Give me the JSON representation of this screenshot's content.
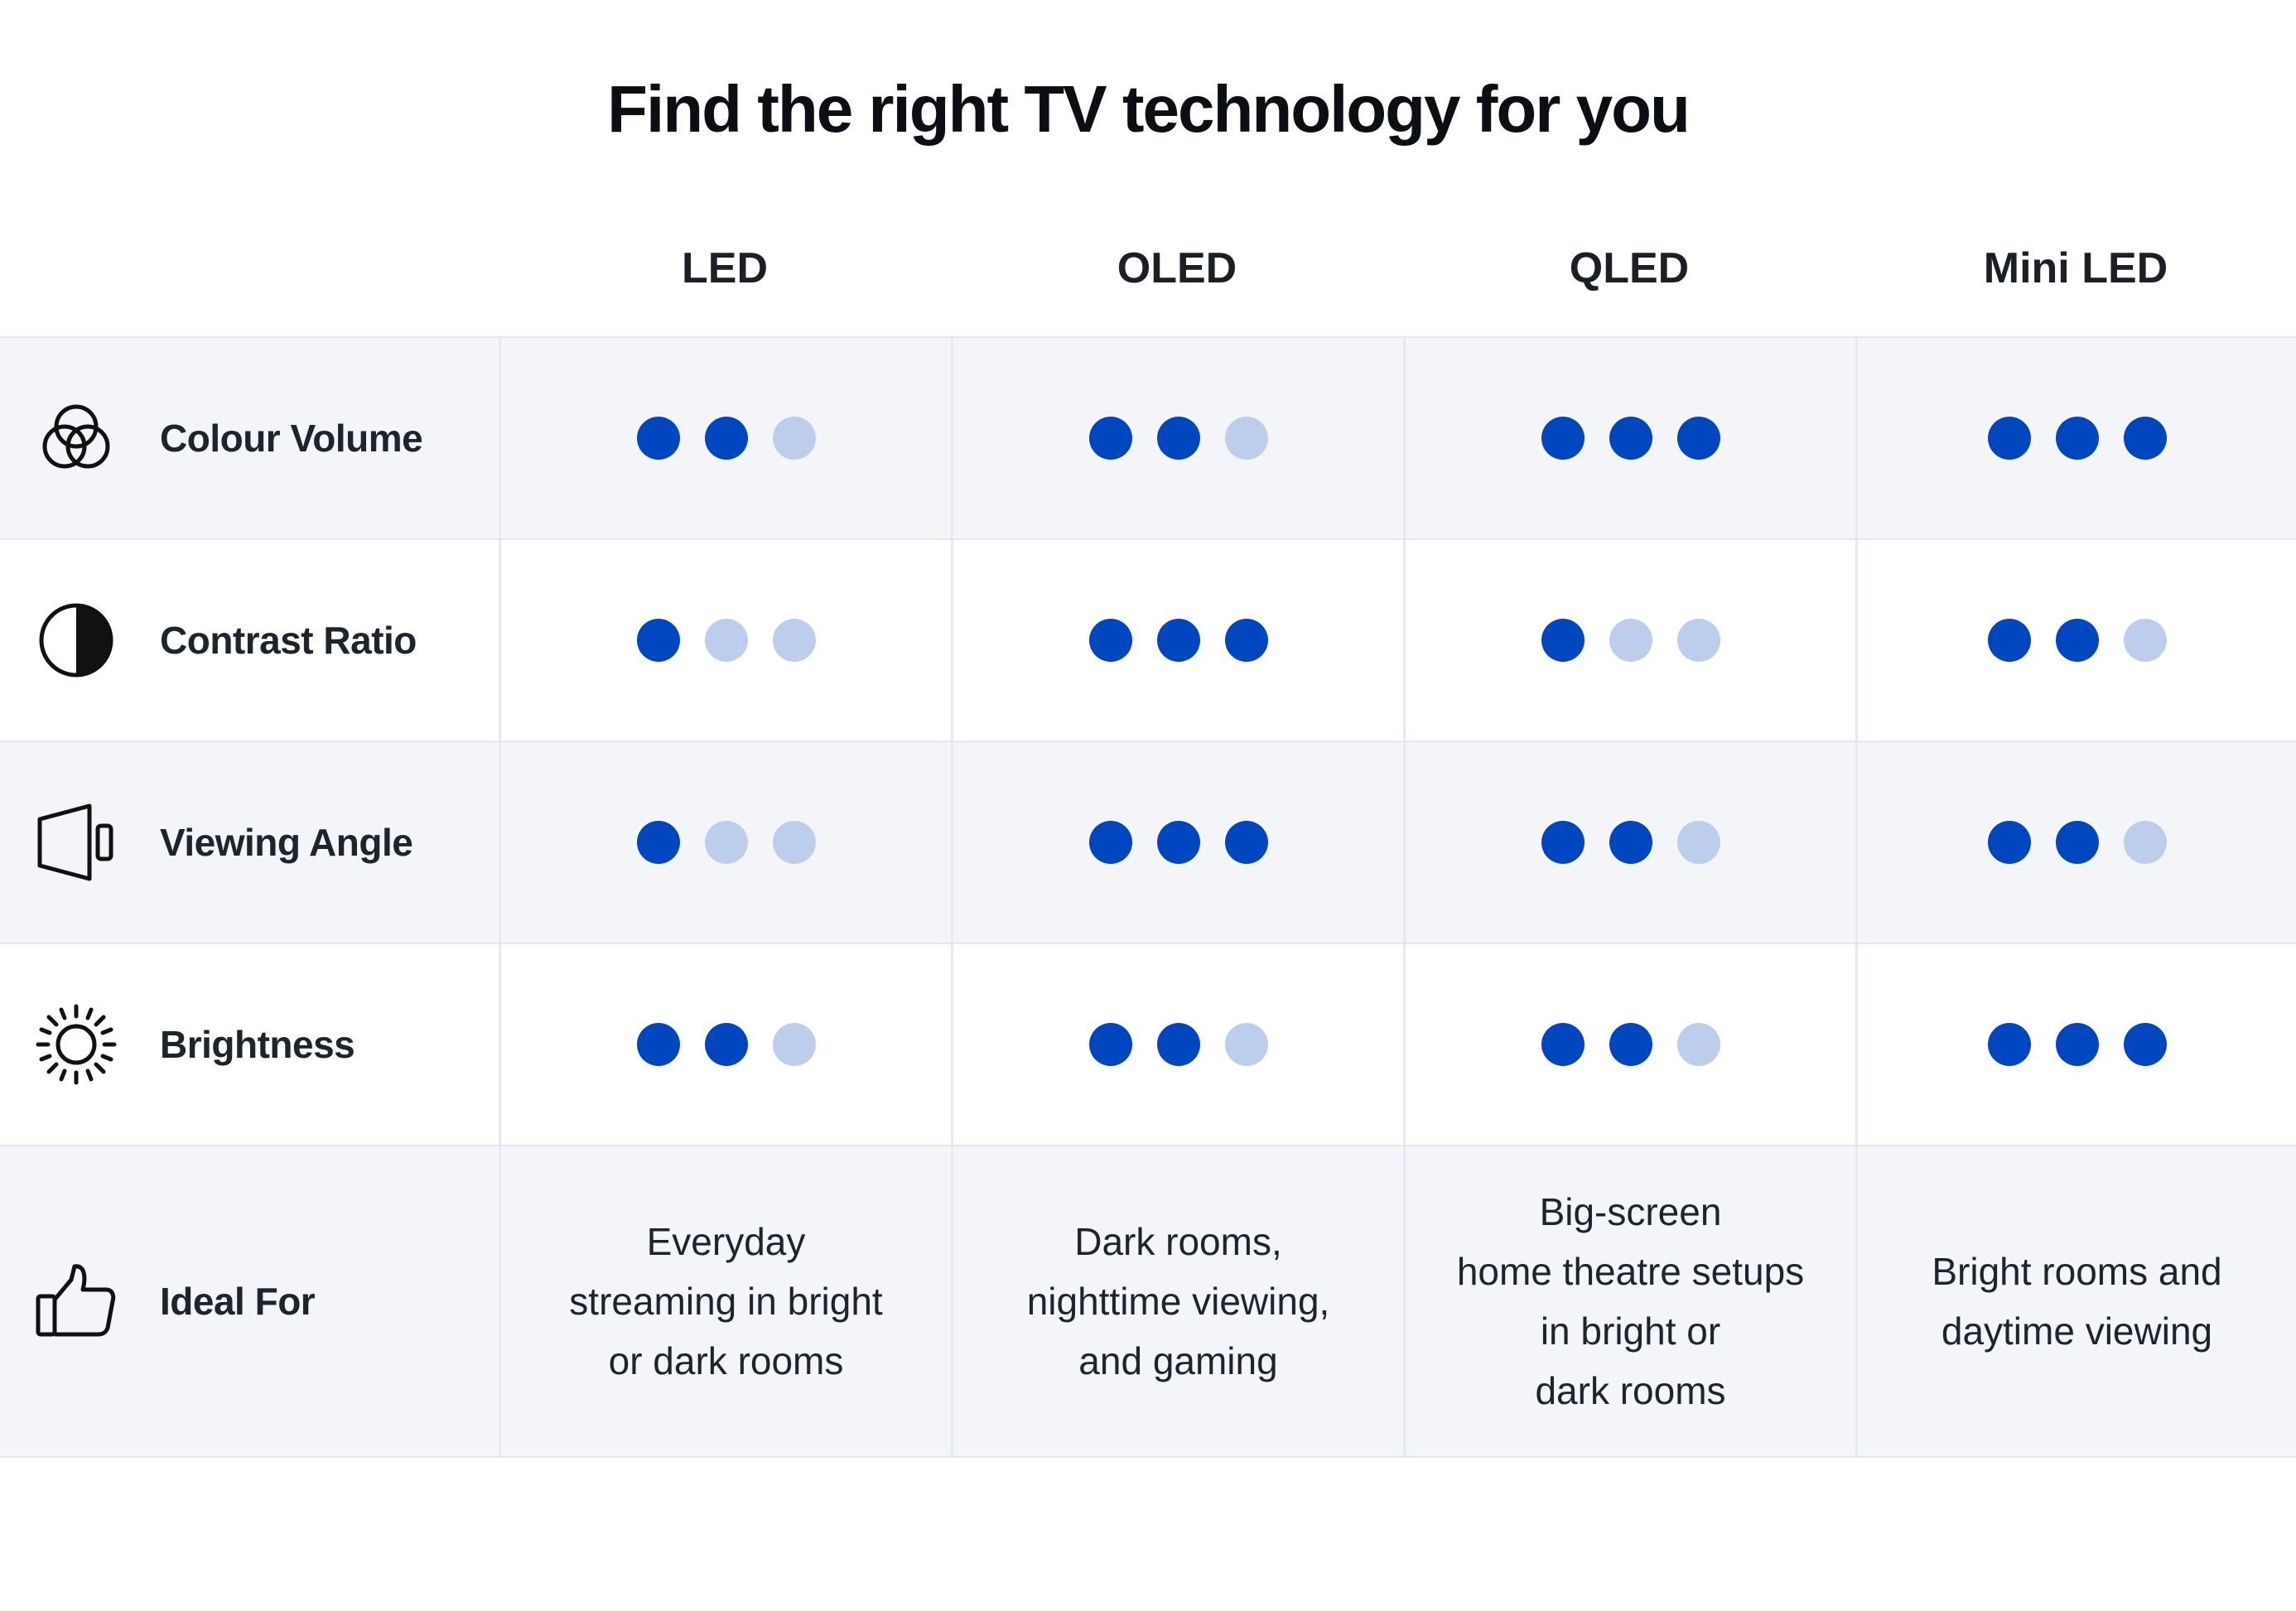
{
  "title": "Find the right TV technology for you",
  "columns": [
    "LED",
    "OLED",
    "QLED",
    "Mini LED"
  ],
  "rows": [
    {
      "label": "Colour Volume",
      "icon": "overlapping-circles-icon",
      "ratings": [
        2,
        2,
        3,
        3
      ]
    },
    {
      "label": "Contrast Ratio",
      "icon": "half-circle-contrast-icon",
      "ratings": [
        1,
        3,
        1,
        2
      ]
    },
    {
      "label": "Viewing Angle",
      "icon": "screen-angle-icon",
      "ratings": [
        1,
        3,
        2,
        2
      ]
    },
    {
      "label": "Brightness",
      "icon": "sun-icon",
      "ratings": [
        2,
        2,
        2,
        3
      ]
    }
  ],
  "rating_max": 3,
  "ideal_for": {
    "label": "Ideal For",
    "icon": "thumbs-up-icon",
    "values": [
      "Everyday\nstreaming in bright\nor dark rooms",
      "Dark rooms,\nnighttime viewing,\nand gaming",
      "Big-screen\nhome theatre setups\nin bright or\ndark rooms",
      "Bright rooms and\ndaytime viewing"
    ]
  },
  "colors": {
    "dot_filled": "#0046be",
    "dot_empty": "#bdcdec",
    "row_alt_bg": "#f3f5f9"
  }
}
